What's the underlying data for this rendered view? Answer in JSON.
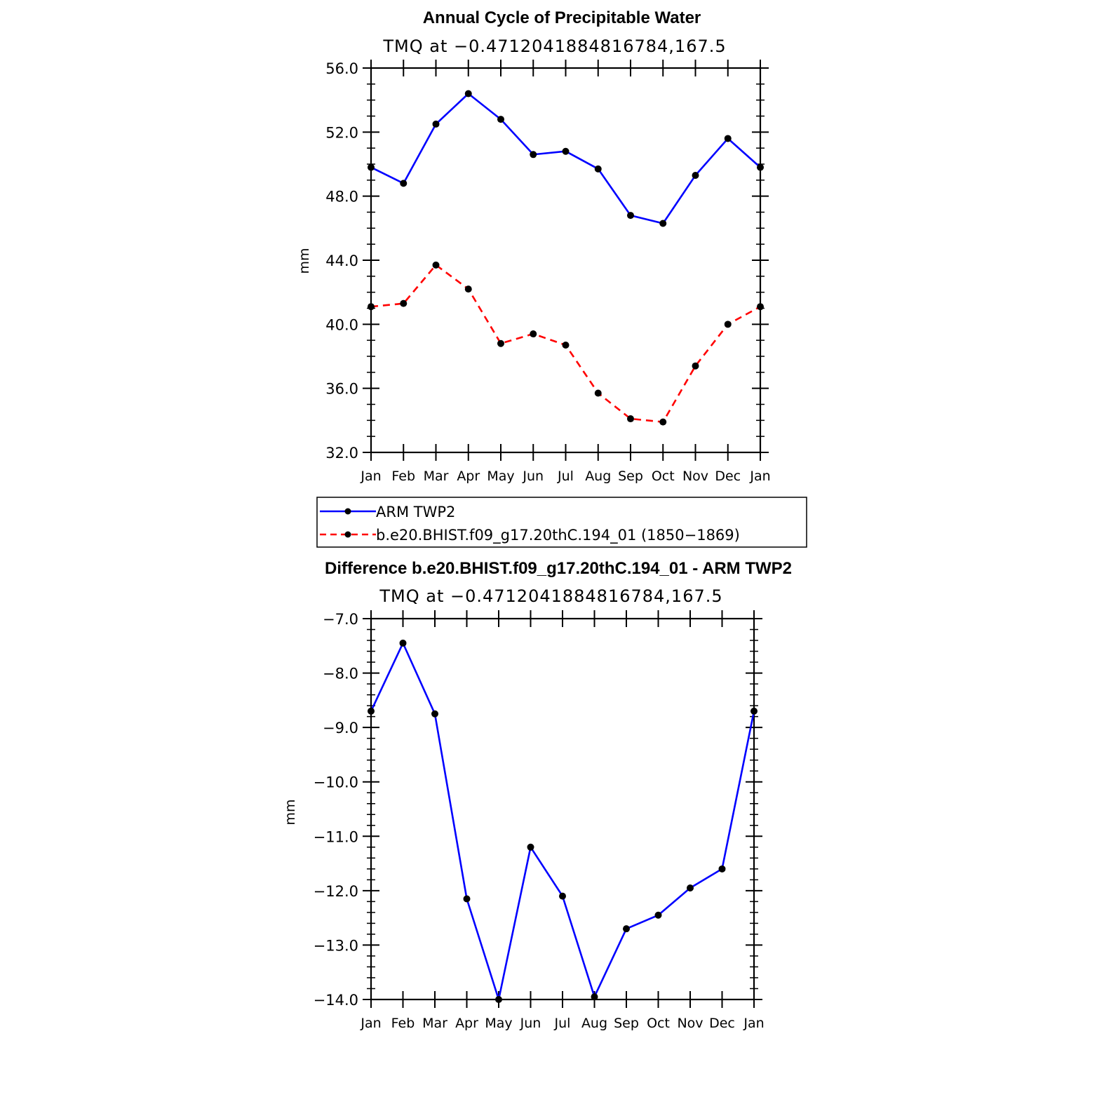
{
  "chart_data": [
    {
      "type": "line",
      "title": "Annual Cycle of Precipitable Water",
      "subtitle": "TMQ at −0.4712041884816784,167.5",
      "ylabel": "mm",
      "ylim": [
        32.0,
        56.0
      ],
      "yticks": [
        "56.0",
        "52.0",
        "48.0",
        "44.0",
        "40.0",
        "36.0",
        "32.0"
      ],
      "categories": [
        "Jan",
        "Feb",
        "Mar",
        "Apr",
        "May",
        "Jun",
        "Jul",
        "Aug",
        "Sep",
        "Oct",
        "Nov",
        "Dec",
        "Jan"
      ],
      "grid": false,
      "series": [
        {
          "name": "ARM TWP2",
          "color": "#0000ff",
          "dash": "solid",
          "values": [
            49.8,
            48.8,
            52.5,
            54.4,
            52.8,
            50.6,
            50.8,
            49.7,
            46.8,
            46.3,
            49.3,
            51.6,
            49.8
          ]
        },
        {
          "name": "b.e20.BHIST.f09_g17.20thC.194_01 (1850−1869)",
          "color": "#ff0000",
          "dash": "dashed",
          "values": [
            41.1,
            41.3,
            43.7,
            42.2,
            38.8,
            39.4,
            38.7,
            35.7,
            34.1,
            33.9,
            37.4,
            40.0,
            41.1
          ]
        }
      ],
      "legend_placement": "below"
    },
    {
      "type": "line",
      "title": "Difference b.e20.BHIST.f09_g17.20thC.194_01 - ARM TWP2",
      "subtitle": "TMQ at −0.4712041884816784,167.5",
      "ylabel": "mm",
      "ylim": [
        -14.0,
        -7.0
      ],
      "yticks": [
        "−7.0",
        "−8.0",
        "−9.0",
        "−10.0",
        "−11.0",
        "−12.0",
        "−13.0",
        "−14.0"
      ],
      "categories": [
        "Jan",
        "Feb",
        "Mar",
        "Apr",
        "May",
        "Jun",
        "Jul",
        "Aug",
        "Sep",
        "Oct",
        "Nov",
        "Dec",
        "Jan"
      ],
      "grid": false,
      "series": [
        {
          "color": "#0000ff",
          "dash": "solid",
          "values": [
            -8.7,
            -7.45,
            -8.75,
            -12.15,
            -14.0,
            -11.2,
            -12.1,
            -13.95,
            -12.7,
            -12.45,
            -11.95,
            -11.6,
            -8.7
          ]
        }
      ]
    }
  ]
}
